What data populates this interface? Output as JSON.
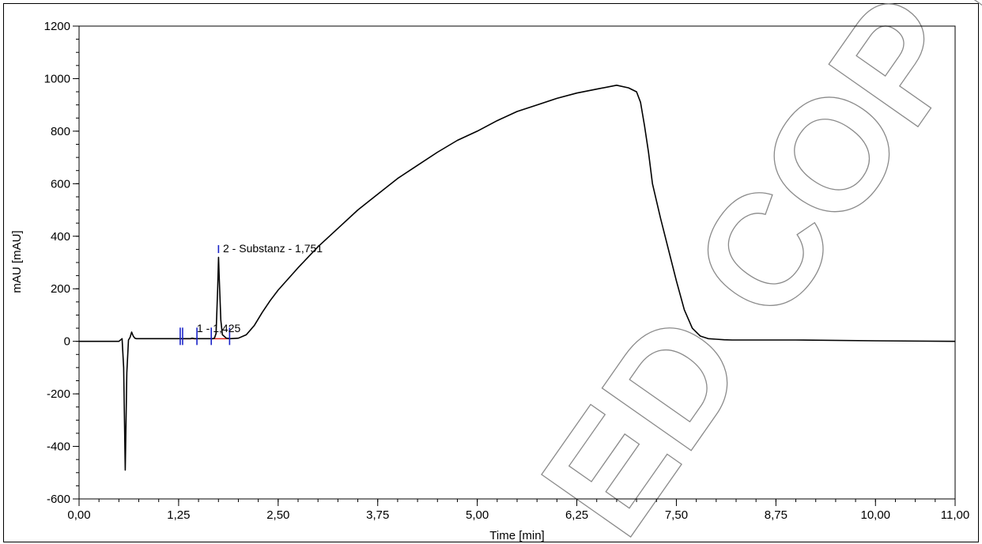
{
  "chart_data": {
    "type": "line",
    "xlabel": "Time [min]",
    "ylabel": "mAU [mAU]",
    "xlim": [
      0,
      11
    ],
    "ylim": [
      -600,
      1200
    ],
    "x_ticks": [
      {
        "value": 0,
        "label": "0,00"
      },
      {
        "value": 1.25,
        "label": "1,25"
      },
      {
        "value": 2.5,
        "label": "2,50"
      },
      {
        "value": 3.75,
        "label": "3,75"
      },
      {
        "value": 5.0,
        "label": "5,00"
      },
      {
        "value": 6.25,
        "label": "6,25"
      },
      {
        "value": 7.5,
        "label": "7,50"
      },
      {
        "value": 8.75,
        "label": "8,75"
      },
      {
        "value": 10.0,
        "label": "10,00"
      },
      {
        "value": 11.0,
        "label": "11,00"
      }
    ],
    "y_ticks": [
      {
        "value": 1200,
        "label": "1200"
      },
      {
        "value": 1000,
        "label": "1000"
      },
      {
        "value": 800,
        "label": "800"
      },
      {
        "value": 600,
        "label": "600"
      },
      {
        "value": 400,
        "label": "400"
      },
      {
        "value": 200,
        "label": "200"
      },
      {
        "value": 0,
        "label": "0"
      },
      {
        "value": -200,
        "label": "-200"
      },
      {
        "value": -400,
        "label": "-400"
      },
      {
        "value": -600,
        "label": "-600"
      }
    ],
    "series": [
      {
        "color": "#000000",
        "x": [
          0,
          0.5,
          0.52,
          0.54,
          0.56,
          0.58,
          0.6,
          0.62,
          0.64,
          0.66,
          0.68,
          0.7,
          0.72,
          0.75,
          0.8,
          0.9,
          1.0,
          1.2,
          1.4,
          1.42,
          1.45,
          1.5,
          1.6,
          1.68,
          1.7,
          1.72,
          1.74,
          1.751,
          1.76,
          1.78,
          1.8,
          1.85,
          1.9,
          2.0,
          2.1,
          2.2,
          2.3,
          2.4,
          2.5,
          2.75,
          3.0,
          3.25,
          3.5,
          3.75,
          4.0,
          4.25,
          4.5,
          4.75,
          5.0,
          5.25,
          5.5,
          5.75,
          6.0,
          6.25,
          6.5,
          6.75,
          6.9,
          7.0,
          7.05,
          7.1,
          7.15,
          7.2,
          7.3,
          7.4,
          7.5,
          7.6,
          7.7,
          7.8,
          7.9,
          8.0,
          8.1,
          8.2,
          8.3,
          8.4,
          8.5,
          8.75,
          9.0,
          10.0,
          11.0
        ],
        "y": [
          0,
          0,
          5,
          10,
          -100,
          -490,
          -120,
          5,
          15,
          35,
          20,
          12,
          10,
          10,
          10,
          10,
          10,
          10,
          10,
          12,
          10,
          10,
          10,
          10,
          12,
          30,
          200,
          320,
          240,
          80,
          25,
          12,
          10,
          12,
          25,
          60,
          110,
          155,
          195,
          280,
          360,
          430,
          500,
          560,
          620,
          670,
          720,
          765,
          800,
          840,
          875,
          900,
          925,
          945,
          960,
          975,
          965,
          950,
          910,
          820,
          720,
          600,
          470,
          350,
          230,
          120,
          50,
          20,
          10,
          8,
          6,
          5,
          5,
          5,
          5,
          5,
          5,
          2,
          0
        ]
      }
    ],
    "peaks": [
      {
        "label": "1 - 1,425",
        "retention_time": 1.425
      },
      {
        "label": "2 - Substanz - 1,751",
        "retention_time": 1.751
      }
    ],
    "grid": false,
    "colors": {
      "trace": "#000000",
      "peak_marker": "#1a23c8",
      "baseline": "#e0241b",
      "watermark": "#8a8a8a"
    }
  },
  "watermark": {
    "text": "ED COPY"
  }
}
